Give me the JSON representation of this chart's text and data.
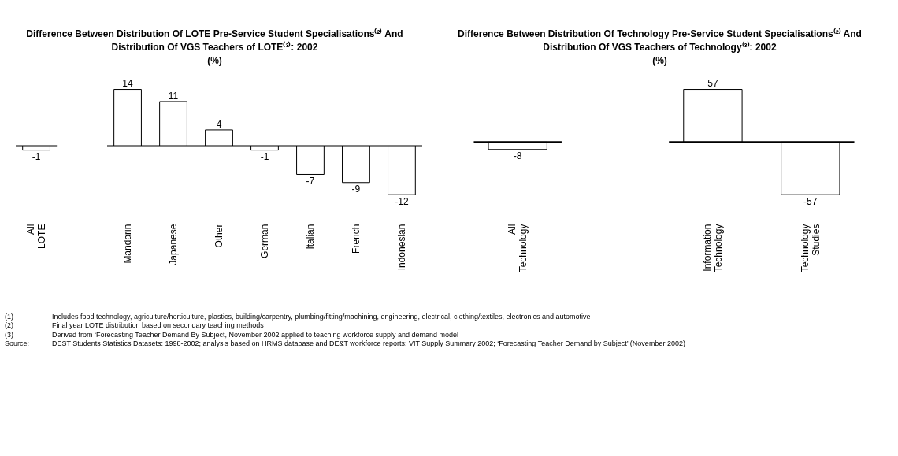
{
  "chart_data": [
    {
      "type": "bar",
      "title": "Difference Between Distribution Of LOTE Pre-Service Student Specialisations⁽²⁾  And Distribution Of VGS Teachers of LOTE⁽³⁾: 2002",
      "subtitle": "(%)",
      "categories": [
        "All\nLOTE",
        null,
        "Mandarin",
        "Japanese",
        "Other",
        "German",
        "Italian",
        "French",
        "Indonesian"
      ],
      "values": [
        -1,
        null,
        14,
        11,
        4,
        -1,
        -7,
        -9,
        -12
      ],
      "color": "#ffffff",
      "data_labels": true,
      "grid": false,
      "legend": false,
      "ref_lines": [
        {
          "axis": "y",
          "value": 0,
          "color": "#000000"
        }
      ],
      "annotations": [
        "(1)\tIncludes food technology, agriculture/horticulture, plastics, building/carpentry, plumbing/fitting/machining, engineering, electrical, clothing/textiles, electronics and automotive",
        "(2)\tFinal year LOTE distribution based on secondary teaching methods",
        "(3)\tDerived from ‘Forecasting Teacher Demand By Subject, November 2002 applied to teaching workforce supply and demand model",
        "Source:\tDEST Students Statistics Datasets: 1998-2002; analysis based on HRMS database and DE&T workforce reports; VIT Supply Summary 2002; ‘Forecasting Teacher Demand by Subject’ (November 2002)"
      ]
    },
    {
      "type": "bar",
      "title": "Difference Between Distribution Of Technology Pre-Service Student Specialisations⁽²⁾  And Distribution Of VGS Teachers of Technology⁽³⁾: 2002",
      "subtitle": "(%)",
      "categories": [
        "All\nTechnology",
        null,
        "Information\nTechnology",
        "Technology\nStudies"
      ],
      "values": [
        -8,
        null,
        57,
        -57
      ],
      "color": "#ffffff",
      "data_labels": true,
      "grid": false,
      "legend": false,
      "ref_lines": [
        {
          "axis": "y",
          "value": 0,
          "color": "#000000"
        }
      ]
    }
  ]
}
